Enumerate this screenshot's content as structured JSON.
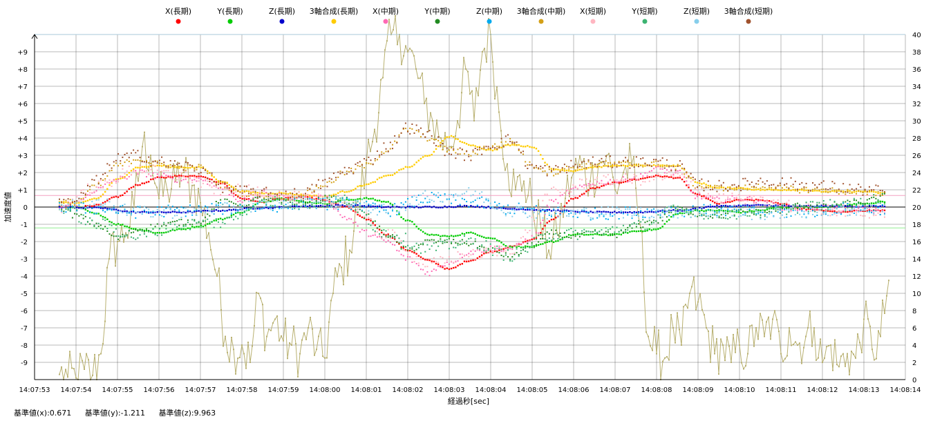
{
  "footer": {
    "base_x": "基準値(x):0.671",
    "base_y": "基準値(y):-1.211",
    "base_z": "基準値(z):9.963"
  },
  "colors": {
    "background": "#ffffff",
    "grid": "#000000",
    "top_line": "#a8c8d8",
    "ref_x": "#f4a0c0",
    "ref_y": "#90ee90",
    "line_zero": "#000000",
    "right_series": "#b8b070"
  },
  "chart_data": {
    "type": "scatter",
    "xlabel": "経過秒[sec]",
    "ylabel": "加速度値",
    "x_ticks": [
      "14:07:53",
      "14:07:54",
      "14:07:55",
      "14:07:56",
      "14:07:57",
      "14:07:58",
      "14:07:59",
      "14:08:00",
      "14:08:01",
      "14:08:02",
      "14:08:03",
      "14:08:04",
      "14:08:05",
      "14:08:06",
      "14:08:07",
      "14:08:08",
      "14:08:09",
      "14:08:10",
      "14:08:11",
      "14:08:12",
      "14:08:13",
      "14:08:14"
    ],
    "xlim": [
      0,
      21
    ],
    "ylim_left": [
      -10,
      10
    ],
    "y_ticks_left": [
      "-9",
      "-8",
      "-7",
      "-6",
      "-5",
      "-4",
      "-3",
      "-2",
      "-1",
      "0",
      "+1",
      "+2",
      "+3",
      "+4",
      "+5",
      "+6",
      "+7",
      "+8",
      "+9"
    ],
    "ylim_right": [
      0,
      40
    ],
    "y_ticks_right": [
      "0",
      "2",
      "4",
      "6",
      "8",
      "10",
      "12",
      "14",
      "16",
      "18",
      "20",
      "22",
      "24",
      "26",
      "28",
      "30",
      "32",
      "34",
      "36",
      "38",
      "40"
    ],
    "reference_lines": [
      {
        "name": "基準値(x)",
        "value": 0.671,
        "color": "#f4a0c0"
      },
      {
        "name": "基準値(y)",
        "value": -1.211,
        "color": "#90ee90"
      }
    ],
    "grid": true,
    "legend_position": "top",
    "series": [
      {
        "name": "X(長期)",
        "color": "#ff0000",
        "kind": "smooth",
        "x": [
          0.6,
          1.0,
          1.5,
          2.0,
          2.5,
          3.0,
          3.5,
          4.0,
          4.5,
          5.0,
          5.5,
          6.0,
          6.5,
          7.0,
          7.5,
          8.0,
          8.5,
          9.0,
          9.5,
          10.0,
          10.5,
          11.0,
          11.5,
          12.0,
          12.5,
          13.0,
          13.5,
          14.0,
          14.5,
          15.0,
          15.5,
          16.0,
          16.5,
          17.0,
          17.5,
          18.0,
          18.5,
          19.0,
          19.5,
          20.0,
          20.5
        ],
        "y": [
          0.0,
          0.0,
          0.1,
          0.6,
          1.3,
          1.7,
          1.8,
          1.8,
          1.4,
          0.5,
          0.3,
          0.5,
          0.6,
          0.4,
          0.0,
          -0.7,
          -1.6,
          -2.5,
          -3.1,
          -3.6,
          -3.1,
          -2.6,
          -2.3,
          -1.9,
          -0.7,
          0.5,
          1.1,
          1.4,
          1.6,
          1.8,
          1.7,
          0.7,
          0.2,
          0.4,
          0.4,
          0.2,
          -0.1,
          -0.2,
          -0.3,
          -0.2,
          -0.2
        ]
      },
      {
        "name": "Y(長期)",
        "color": "#00cc00",
        "kind": "smooth",
        "x": [
          0.6,
          1.0,
          1.5,
          2.0,
          2.5,
          3.0,
          3.5,
          4.0,
          4.5,
          5.0,
          5.5,
          6.0,
          6.5,
          7.0,
          7.5,
          8.0,
          8.5,
          9.0,
          9.5,
          10.0,
          10.5,
          11.0,
          11.5,
          12.0,
          12.5,
          13.0,
          13.5,
          14.0,
          14.5,
          15.0,
          15.5,
          16.0,
          16.5,
          17.0,
          17.5,
          18.0,
          18.5,
          19.0,
          19.5,
          20.0,
          20.5
        ],
        "y": [
          0.0,
          0.0,
          -0.4,
          -1.0,
          -1.3,
          -1.5,
          -1.3,
          -1.1,
          -0.7,
          -0.3,
          0.3,
          0.5,
          0.3,
          0.2,
          0.4,
          0.5,
          0.3,
          -0.8,
          -1.6,
          -1.7,
          -1.5,
          -1.8,
          -2.3,
          -2.3,
          -2.0,
          -1.6,
          -1.6,
          -1.6,
          -1.4,
          -1.3,
          -0.4,
          -0.2,
          -0.2,
          -0.3,
          -0.2,
          0.0,
          0.0,
          0.0,
          0.1,
          0.2,
          0.3
        ]
      },
      {
        "name": "Z(長期)",
        "color": "#0000cc",
        "kind": "smooth",
        "x": [
          0.6,
          1.5,
          2.5,
          3.5,
          4.5,
          5.5,
          6.5,
          7.5,
          8.5,
          9.5,
          10.5,
          11.5,
          12.5,
          13.5,
          14.5,
          15.5,
          16.5,
          17.5,
          18.5,
          19.5,
          20.5
        ],
        "y": [
          0.0,
          -0.05,
          -0.3,
          -0.3,
          -0.2,
          -0.05,
          0.05,
          0.1,
          0.0,
          0.0,
          0.05,
          -0.1,
          -0.2,
          -0.3,
          -0.3,
          -0.2,
          0.05,
          0.1,
          0.05,
          0.05,
          0.05
        ]
      },
      {
        "name": "3軸合成(長期)",
        "color": "#ffcc00",
        "kind": "smooth",
        "x": [
          0.6,
          1.0,
          1.5,
          2.0,
          2.5,
          3.0,
          3.5,
          4.0,
          4.5,
          5.0,
          5.5,
          6.0,
          6.5,
          7.0,
          7.5,
          8.0,
          8.5,
          9.0,
          9.5,
          10.0,
          10.5,
          11.0,
          11.5,
          12.0,
          12.5,
          13.0,
          13.5,
          14.0,
          14.5,
          15.0,
          15.5,
          16.0,
          16.5,
          17.0,
          17.5,
          18.0,
          18.5,
          19.0,
          19.5,
          20.0,
          20.5
        ],
        "y": [
          0.3,
          0.2,
          0.5,
          1.6,
          2.3,
          2.4,
          2.3,
          2.3,
          1.5,
          0.9,
          0.8,
          0.8,
          0.7,
          0.6,
          0.9,
          1.3,
          1.8,
          2.3,
          3.0,
          4.1,
          3.6,
          3.3,
          3.6,
          3.5,
          2.2,
          2.1,
          2.3,
          2.4,
          2.4,
          2.4,
          2.4,
          1.4,
          1.1,
          1.1,
          1.0,
          1.0,
          1.0,
          0.9,
          0.9,
          0.9,
          0.8
        ]
      },
      {
        "name": "X(中期)",
        "color": "#ff69b4",
        "kind": "noisy",
        "x": [
          0.6,
          1.0,
          1.5,
          2.0,
          2.5,
          3.0,
          3.5,
          4.0,
          4.5,
          5.0,
          5.5,
          6.0,
          6.5,
          7.0,
          7.5,
          8.0,
          8.5,
          9.0,
          9.5,
          10.0,
          10.5,
          11.0,
          11.5,
          12.0,
          12.5,
          13.0,
          13.5,
          14.0,
          14.5,
          15.0,
          15.5,
          16.0,
          16.5,
          17.0,
          17.5,
          18.0,
          18.5,
          19.0,
          19.5,
          20.0,
          20.5
        ],
        "y": [
          0.0,
          0.2,
          1.0,
          1.6,
          2.0,
          1.8,
          1.6,
          1.6,
          1.1,
          0.4,
          0.8,
          0.6,
          0.5,
          0.5,
          -0.6,
          -1.5,
          -2.0,
          -3.0,
          -3.8,
          -3.2,
          -2.6,
          -2.4,
          -2.4,
          -1.8,
          0.3,
          1.0,
          1.4,
          1.5,
          1.7,
          2.2,
          2.0,
          0.6,
          0.4,
          0.5,
          0.4,
          0.0,
          -0.1,
          0.0,
          -0.2,
          -0.1,
          -0.3
        ]
      },
      {
        "name": "Y(中期)",
        "color": "#228b22",
        "kind": "noisy",
        "x": [
          0.6,
          1.0,
          1.5,
          2.0,
          2.5,
          3.0,
          3.5,
          4.0,
          4.5,
          5.0,
          5.5,
          6.0,
          6.5,
          7.0,
          7.5,
          8.0,
          8.5,
          9.0,
          9.5,
          10.0,
          10.5,
          11.0,
          11.5,
          12.0,
          12.5,
          13.0,
          13.5,
          14.0,
          14.5,
          15.0,
          15.5,
          16.0,
          16.5,
          17.0,
          17.5,
          18.0,
          18.5,
          19.0,
          19.5,
          20.0,
          20.5
        ],
        "y": [
          0.0,
          -0.5,
          -1.0,
          -1.8,
          -1.3,
          -1.1,
          -0.9,
          -0.8,
          0.3,
          0.2,
          0.5,
          0.3,
          0.2,
          0.5,
          0.4,
          -0.5,
          -1.6,
          -2.5,
          -2.0,
          -2.0,
          -2.1,
          -2.5,
          -2.9,
          -2.2,
          -1.5,
          -1.7,
          -1.5,
          -1.6,
          -1.1,
          -0.8,
          -0.1,
          -0.4,
          -0.5,
          -0.3,
          -0.3,
          -0.2,
          0.1,
          0.0,
          0.2,
          0.3,
          0.6
        ]
      },
      {
        "name": "Z(中期)",
        "color": "#00aaee",
        "kind": "scatter",
        "x": [
          0.6,
          1.5,
          2.5,
          3.5,
          4.5,
          5.5,
          6.5,
          7.5,
          8.5,
          9.5,
          10.5,
          11.5,
          12.5,
          13.5,
          14.5,
          15.5,
          16.5,
          17.5,
          18.5,
          19.5,
          20.5
        ],
        "y": [
          0.0,
          -0.1,
          -0.3,
          -0.2,
          -0.1,
          0.0,
          0.2,
          0.2,
          -0.2,
          0.5,
          0.3,
          -0.1,
          -0.3,
          -0.4,
          -0.3,
          -0.2,
          -0.2,
          -0.3,
          -0.3,
          -0.1,
          -0.1
        ]
      },
      {
        "name": "3軸合成(中期)",
        "color": "#d4a017",
        "kind": "noisy",
        "x": [
          0.6,
          1.0,
          1.5,
          2.0,
          2.5,
          3.0,
          3.5,
          4.0,
          4.5,
          5.0,
          5.5,
          6.0,
          6.5,
          7.0,
          7.5,
          8.0,
          8.5,
          9.0,
          9.5,
          10.0,
          10.5,
          11.0,
          11.5,
          12.0,
          12.5,
          13.0,
          13.5,
          14.0,
          14.5,
          15.0,
          15.5,
          16.0,
          16.5,
          17.0,
          17.5,
          18.0,
          18.5,
          19.0,
          19.5,
          20.0,
          20.5
        ],
        "y": [
          0.2,
          0.3,
          1.2,
          2.4,
          2.8,
          2.5,
          2.3,
          2.3,
          1.3,
          0.8,
          0.7,
          0.6,
          0.8,
          1.3,
          2.0,
          2.4,
          3.3,
          4.5,
          4.0,
          3.3,
          3.1,
          3.5,
          3.8,
          2.4,
          2.0,
          2.3,
          2.5,
          2.5,
          2.5,
          2.5,
          2.3,
          1.2,
          1.1,
          1.1,
          1.2,
          1.1,
          1.0,
          1.0,
          0.9,
          0.8,
          0.8
        ]
      },
      {
        "name": "X(短期)",
        "color": "#ffb6c1",
        "kind": "scatter",
        "x": [
          0.6,
          1.5,
          2.5,
          3.5,
          4.5,
          5.5,
          6.5,
          7.5,
          8.5,
          9.5,
          10.5,
          11.5,
          12.5,
          13.5,
          14.5,
          15.5,
          16.5,
          17.5,
          18.5,
          19.5,
          20.5
        ],
        "y": [
          0.0,
          1.2,
          2.2,
          1.8,
          1.0,
          0.9,
          0.5,
          0.2,
          -1.6,
          -3.3,
          -2.8,
          -2.4,
          0.8,
          1.5,
          1.6,
          1.8,
          0.5,
          0.3,
          0.0,
          -0.2,
          -0.4
        ]
      },
      {
        "name": "Y(短期)",
        "color": "#3cb371",
        "kind": "scatter",
        "x": [
          0.6,
          1.5,
          2.5,
          3.5,
          4.5,
          5.5,
          6.5,
          7.5,
          8.5,
          9.5,
          10.5,
          11.5,
          12.5,
          13.5,
          14.5,
          15.5,
          16.5,
          17.5,
          18.5,
          19.5,
          20.5
        ],
        "y": [
          0.0,
          -1.0,
          -1.7,
          -1.0,
          -0.9,
          0.3,
          0.2,
          0.4,
          -1.5,
          -2.4,
          -2.0,
          -2.8,
          -1.6,
          -1.5,
          -1.1,
          -0.2,
          -0.4,
          -0.3,
          0.0,
          0.1,
          0.5
        ]
      },
      {
        "name": "Z(短期)",
        "color": "#87ceeb",
        "kind": "scatter",
        "x": [
          0.6,
          1.5,
          2.5,
          3.5,
          4.5,
          5.5,
          6.5,
          7.5,
          8.5,
          9.5,
          10.5,
          11.5,
          12.5,
          13.5,
          14.5,
          15.5,
          16.5,
          17.5,
          18.5,
          19.5,
          20.5
        ],
        "y": [
          0.0,
          0.3,
          -0.3,
          -0.3,
          -0.1,
          0.1,
          0.3,
          0.3,
          -0.2,
          0.6,
          0.8,
          -0.2,
          -0.4,
          -0.3,
          -0.3,
          -0.3,
          -0.3,
          -0.4,
          -0.3,
          -0.2,
          -0.1
        ]
      },
      {
        "name": "3軸合成(短期)",
        "color": "#a0522d",
        "kind": "scatter",
        "x": [
          0.6,
          1.0,
          1.5,
          2.0,
          2.5,
          3.0,
          3.5,
          4.0,
          4.5,
          5.0,
          5.5,
          6.0,
          6.5,
          7.0,
          7.5,
          8.0,
          8.5,
          9.0,
          9.5,
          10.0,
          10.5,
          11.0,
          11.5,
          12.0,
          12.5,
          13.0,
          13.5,
          14.0,
          14.5,
          15.0,
          15.5,
          16.0,
          16.5,
          17.0,
          17.5,
          18.0,
          18.5,
          19.0,
          19.5,
          20.0,
          20.5
        ],
        "y": [
          0.2,
          0.4,
          1.5,
          2.8,
          3.0,
          2.6,
          2.4,
          2.2,
          1.2,
          0.9,
          0.8,
          0.7,
          0.8,
          1.4,
          2.1,
          2.6,
          3.5,
          4.6,
          4.2,
          3.2,
          3.0,
          3.6,
          3.9,
          2.3,
          2.1,
          2.4,
          2.6,
          2.6,
          2.6,
          2.6,
          2.4,
          1.3,
          1.2,
          1.3,
          1.5,
          1.4,
          1.3,
          1.2,
          1.1,
          1.0,
          0.9
        ]
      },
      {
        "name": "",
        "color": "#b8b070",
        "kind": "right_axis",
        "axis": "right",
        "x": [
          0.6,
          0.8,
          1.0,
          1.2,
          1.4,
          1.6,
          1.8,
          2.0,
          2.2,
          2.4,
          2.6,
          2.8,
          3.0,
          3.2,
          3.4,
          3.6,
          3.8,
          4.0,
          4.2,
          4.4,
          4.6,
          4.8,
          5.0,
          5.2,
          5.4,
          5.6,
          5.8,
          6.0,
          6.2,
          6.4,
          6.6,
          6.8,
          7.0,
          7.2,
          7.4,
          7.6,
          7.8,
          8.0,
          8.2,
          8.4,
          8.6,
          8.8,
          9.0,
          9.2,
          9.4,
          9.6,
          9.8,
          10.0,
          10.2,
          10.4,
          10.6,
          10.8,
          11.0,
          11.2,
          11.4,
          11.6,
          11.8,
          12.0,
          12.2,
          12.4,
          12.6,
          12.8,
          13.0,
          13.2,
          13.4,
          13.6,
          13.8,
          14.0,
          14.2,
          14.4,
          14.6,
          14.8,
          15.0,
          15.2,
          15.4,
          15.6,
          15.8,
          16.0,
          16.2,
          16.4,
          16.6,
          16.8,
          17.0,
          17.2,
          17.4,
          17.6,
          17.8,
          18.0,
          18.2,
          18.4,
          18.6,
          18.8,
          19.0,
          19.2,
          19.4,
          19.6,
          19.8,
          20.0,
          20.2,
          20.4,
          20.6
        ],
        "y": [
          0.6,
          0.3,
          0.2,
          1.2,
          0.5,
          3.0,
          14.0,
          16.0,
          17.0,
          20.0,
          27.0,
          26.0,
          21.0,
          22.0,
          23.0,
          24.0,
          22.5,
          20.5,
          17.0,
          12.0,
          5.0,
          3.5,
          4.0,
          2.0,
          10.0,
          5.0,
          7.0,
          4.5,
          4.0,
          3.0,
          6.0,
          3.5,
          2.5,
          10.0,
          13.0,
          15.0,
          20.0,
          25.0,
          29.0,
          35.0,
          40.0,
          40.0,
          38.0,
          36.0,
          32.0,
          30.0,
          28.0,
          27.0,
          30.0,
          36.0,
          30.0,
          38.0,
          40.0,
          31.0,
          25.0,
          22.0,
          23.0,
          20.0,
          18.0,
          15.0,
          17.0,
          21.0,
          24.0,
          25.0,
          23.0,
          25.0,
          26.0,
          22.0,
          24.0,
          25.0,
          18.0,
          5.0,
          3.0,
          2.5,
          6.0,
          4.0,
          10.0,
          9.0,
          6.0,
          3.0,
          4.0,
          2.0,
          4.0,
          3.0,
          6.0,
          5.0,
          7.0,
          3.0,
          6.0,
          4.0,
          5.0,
          6.0,
          2.0,
          4.0,
          1.5,
          3.0,
          2.5,
          7.0,
          3.5,
          5.0,
          11.5
        ]
      }
    ]
  }
}
